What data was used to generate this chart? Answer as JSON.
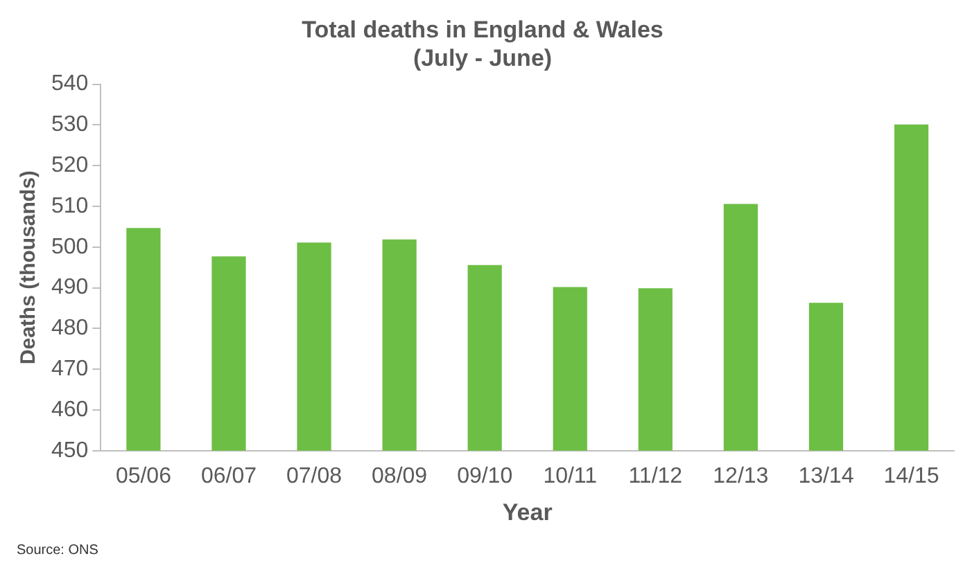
{
  "chart_data": {
    "type": "bar",
    "title": "Total deaths in England & Wales",
    "subtitle": "(July - June)",
    "xlabel": "Year",
    "ylabel": "Deaths (thousands)",
    "categories": [
      "05/06",
      "06/07",
      "07/08",
      "08/09",
      "09/10",
      "10/11",
      "11/12",
      "12/13",
      "13/14",
      "14/15"
    ],
    "values": [
      504.7,
      497.7,
      501.1,
      501.9,
      495.6,
      490.2,
      489.9,
      510.6,
      486.3,
      530.1
    ],
    "color": "#6dbe45",
    "ylim": [
      450,
      540
    ],
    "yticks": [
      450,
      460,
      470,
      480,
      490,
      500,
      510,
      520,
      530,
      540
    ],
    "grid": false,
    "legend": false,
    "annotations": [
      "Source: ONS"
    ]
  }
}
